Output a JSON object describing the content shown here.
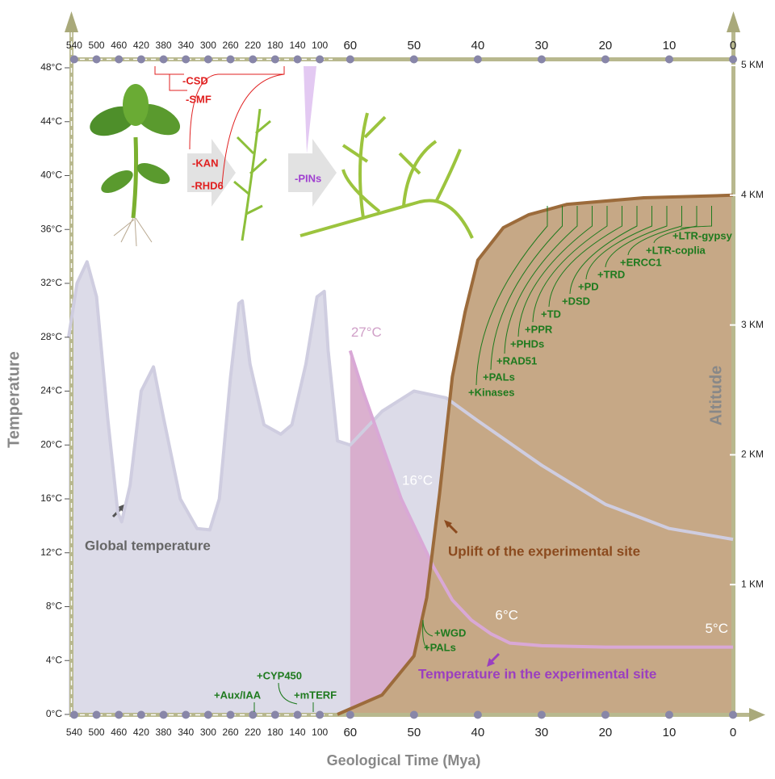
{
  "chart_data": {
    "type": "area",
    "x_label": "Geological Time (Mya)",
    "y_label": "Temperature",
    "y2_label": "Altitude",
    "x_segments": [
      {
        "xlim": [
          550,
          80
        ],
        "xticks": [
          540,
          500,
          460,
          420,
          380,
          340,
          300,
          260,
          220,
          180,
          140,
          100
        ]
      },
      {
        "xlim": [
          62,
          0
        ],
        "xticks": [
          60,
          50,
          40,
          30,
          20,
          10,
          0
        ]
      }
    ],
    "ylim": [
      0,
      48
    ],
    "yticks": [
      {
        "value": 0,
        "label": "0°C"
      },
      {
        "value": 4,
        "label": "4°C"
      },
      {
        "value": 8,
        "label": "8°C"
      },
      {
        "value": 12,
        "label": "12°C"
      },
      {
        "value": 16,
        "label": "16°C"
      },
      {
        "value": 20,
        "label": "20°C"
      },
      {
        "value": 24,
        "label": "24°C"
      },
      {
        "value": 28,
        "label": "28°C"
      },
      {
        "value": 32,
        "label": "32°C"
      },
      {
        "value": 36,
        "label": "36°C"
      },
      {
        "value": 40,
        "label": "40°C"
      },
      {
        "value": 44,
        "label": "44°C"
      },
      {
        "value": 48,
        "label": "48°C"
      }
    ],
    "y2lim": [
      0,
      5
    ],
    "y2ticks": [
      {
        "value": 1,
        "label": "1 KM"
      },
      {
        "value": 2,
        "label": "2 KM"
      },
      {
        "value": 3,
        "label": "3 KM"
      },
      {
        "value": 4,
        "label": "4 KM"
      },
      {
        "value": 5,
        "label": "5 KM"
      }
    ],
    "series": [
      {
        "name": "Global temperature",
        "color": "#d0cfe0",
        "x": [
          550,
          535,
          517,
          500,
          480,
          462,
          455,
          440,
          420,
          398,
          380,
          350,
          320,
          297,
          280,
          260,
          245,
          239,
          225,
          200,
          170,
          150,
          125,
          105,
          92,
          85,
          62,
          60,
          55,
          50,
          45,
          40,
          30,
          20,
          10,
          0
        ],
        "values": [
          28,
          32,
          33.6,
          31,
          22,
          15,
          14.3,
          17,
          24,
          25.8,
          22,
          16,
          13.8,
          13.7,
          16,
          25,
          30.5,
          30.7,
          26,
          21.5,
          20.8,
          21.5,
          26,
          31,
          31.4,
          27,
          20.3,
          20,
          22.5,
          24,
          23.5,
          21.8,
          18.5,
          15.6,
          13.8,
          13
        ]
      },
      {
        "name": "Temperature in the experimental site",
        "color": "#d6a8cb",
        "x": [
          60,
          58,
          55,
          52,
          50,
          47,
          44,
          41,
          38,
          35,
          30,
          20,
          10,
          0
        ],
        "values": [
          27,
          24,
          20,
          16,
          14,
          11,
          8.5,
          7,
          6,
          5.3,
          5.1,
          5,
          5,
          5
        ],
        "value_labels": [
          "27°C",
          null,
          null,
          "16°C",
          null,
          null,
          null,
          null,
          "6°C",
          null,
          null,
          null,
          null,
          "5°C"
        ]
      },
      {
        "name": "Uplift of the experimental site",
        "color": "#c6a886",
        "axis": "y2",
        "x": [
          62,
          55,
          50,
          48,
          46,
          44,
          42,
          40,
          36,
          32,
          26,
          14,
          0
        ],
        "values": [
          0,
          0.15,
          0.45,
          0.9,
          1.7,
          2.6,
          3.1,
          3.5,
          3.75,
          3.85,
          3.93,
          3.98,
          4.0
        ]
      }
    ],
    "gene_gains": [
      "+Kinases",
      "+PALs",
      "+RAD51",
      "+PHDs",
      "+PPR",
      "+TD",
      "+DSD",
      "+PD",
      "+TRD",
      "+ERCC1",
      "+LTR-coplia",
      "+LTR-gypsy"
    ],
    "early_gains": [
      "+WGD",
      "+PALs"
    ],
    "ancient_gains": [
      "+CYP450",
      "+Aux/IAA",
      "+mTERF"
    ],
    "gene_losses": [
      "-CSD",
      "-SMF",
      "-KAN",
      "-RHD6"
    ],
    "pin_loss": "-PINs"
  }
}
